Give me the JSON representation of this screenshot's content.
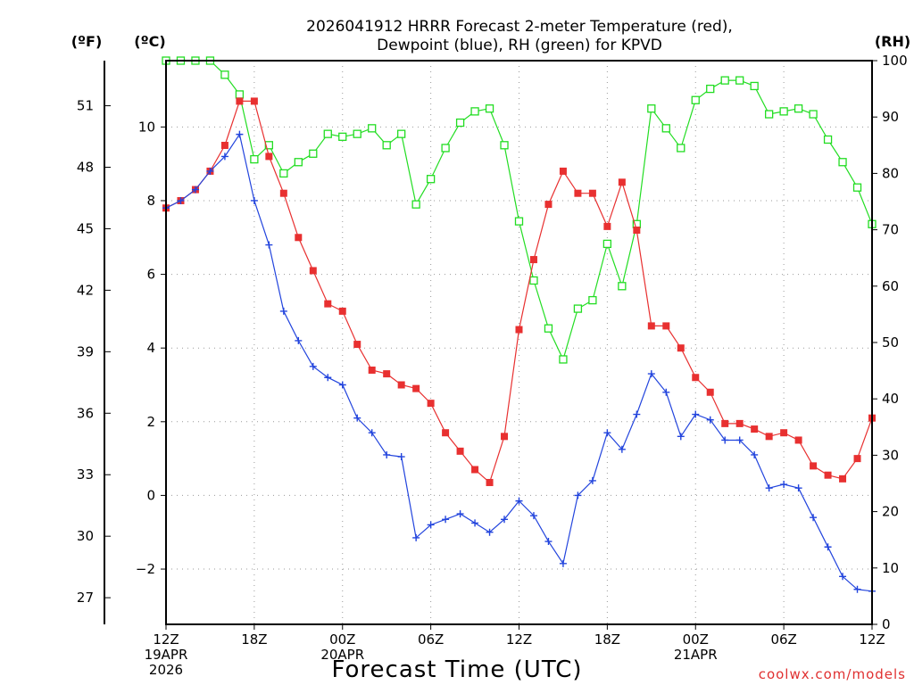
{
  "chart_data": {
    "type": "line",
    "title": "2026041912 HRRR Forecast 2-meter Temperature (red),",
    "subtitle": "Dewpoint (blue), RH (green) for KPVD",
    "xlabel": "Forecast Time (UTC)",
    "credit": "coolwx.com/models",
    "left_unit_f": "(ºF)",
    "left_unit_c": "(ºC)",
    "right_unit": "(RH)",
    "ylim_c": [
      -3.5,
      11.8
    ],
    "ylim_rh": [
      0,
      100
    ],
    "ylim_f": [
      25.7,
      53.2
    ],
    "xlim_hours": [
      0,
      48
    ],
    "celsius_ticks": [
      "10",
      "8",
      "6",
      "4",
      "2",
      "0",
      "−2"
    ],
    "fahrenheit_ticks": [
      "51",
      "48",
      "45",
      "42",
      "39",
      "36",
      "33",
      "30",
      "27"
    ],
    "rh_ticks": [
      "100",
      "90",
      "80",
      "70",
      "60",
      "50",
      "40",
      "30",
      "20",
      "10",
      "0"
    ],
    "x_ticks": [
      {
        "hour": 0,
        "lines": [
          "12Z",
          "19APR",
          "2026"
        ]
      },
      {
        "hour": 6,
        "lines": [
          "18Z"
        ]
      },
      {
        "hour": 12,
        "lines": [
          "00Z",
          "20APR"
        ]
      },
      {
        "hour": 18,
        "lines": [
          "06Z"
        ]
      },
      {
        "hour": 24,
        "lines": [
          "12Z"
        ]
      },
      {
        "hour": 30,
        "lines": [
          "18Z"
        ]
      },
      {
        "hour": 36,
        "lines": [
          "00Z",
          "21APR"
        ]
      },
      {
        "hour": 42,
        "lines": [
          "06Z"
        ]
      },
      {
        "hour": 48,
        "lines": [
          "12Z"
        ]
      }
    ],
    "series": [
      {
        "name": "Temperature",
        "unit": "C",
        "color": "#e83030",
        "values": [
          7.8,
          8.0,
          8.3,
          8.8,
          9.5,
          10.7,
          10.7,
          9.2,
          8.2,
          7.0,
          6.1,
          5.2,
          5.0,
          4.1,
          3.4,
          3.3,
          3.0,
          2.9,
          2.5,
          1.7,
          1.2,
          0.7,
          0.35,
          1.6,
          4.5,
          6.4,
          7.9,
          8.8,
          8.2,
          8.2,
          7.3,
          8.5,
          7.2,
          4.6,
          4.6,
          4.0,
          3.2,
          2.8,
          1.95,
          1.95,
          1.8,
          1.6,
          1.7,
          1.5,
          0.8,
          0.55,
          0.45,
          1.0,
          2.1
        ]
      },
      {
        "name": "Dewpoint",
        "unit": "C",
        "color": "#2244dd",
        "values": [
          7.8,
          8.0,
          8.3,
          8.8,
          9.2,
          9.8,
          8.0,
          6.8,
          5.0,
          4.2,
          3.5,
          3.2,
          3.0,
          2.1,
          1.7,
          1.1,
          1.05,
          -1.15,
          -0.8,
          -0.65,
          -0.5,
          -0.75,
          -1.0,
          -0.65,
          -0.15,
          -0.55,
          -1.25,
          -1.85,
          0.0,
          0.4,
          1.7,
          1.25,
          2.2,
          3.3,
          2.8,
          1.6,
          2.2,
          2.05,
          1.5,
          1.5,
          1.1,
          0.2,
          0.3,
          0.2,
          -0.6,
          -1.4,
          -2.2,
          -2.55,
          -2.6
        ]
      },
      {
        "name": "RH",
        "unit": "%",
        "color": "#22dd22",
        "values": [
          100,
          100,
          100,
          100,
          97.5,
          94,
          82.5,
          85,
          80,
          82,
          83.5,
          87,
          86.5,
          87,
          88,
          85,
          87,
          74.5,
          79,
          84.5,
          89,
          91,
          91.5,
          85,
          71.5,
          61,
          52.5,
          47,
          56,
          57.5,
          67.5,
          60,
          71,
          91.5,
          88,
          84.5,
          93,
          95,
          96.5,
          96.5,
          95.5,
          90.5,
          91,
          91.5,
          90.5,
          86,
          82,
          77.5,
          71
        ]
      }
    ]
  }
}
